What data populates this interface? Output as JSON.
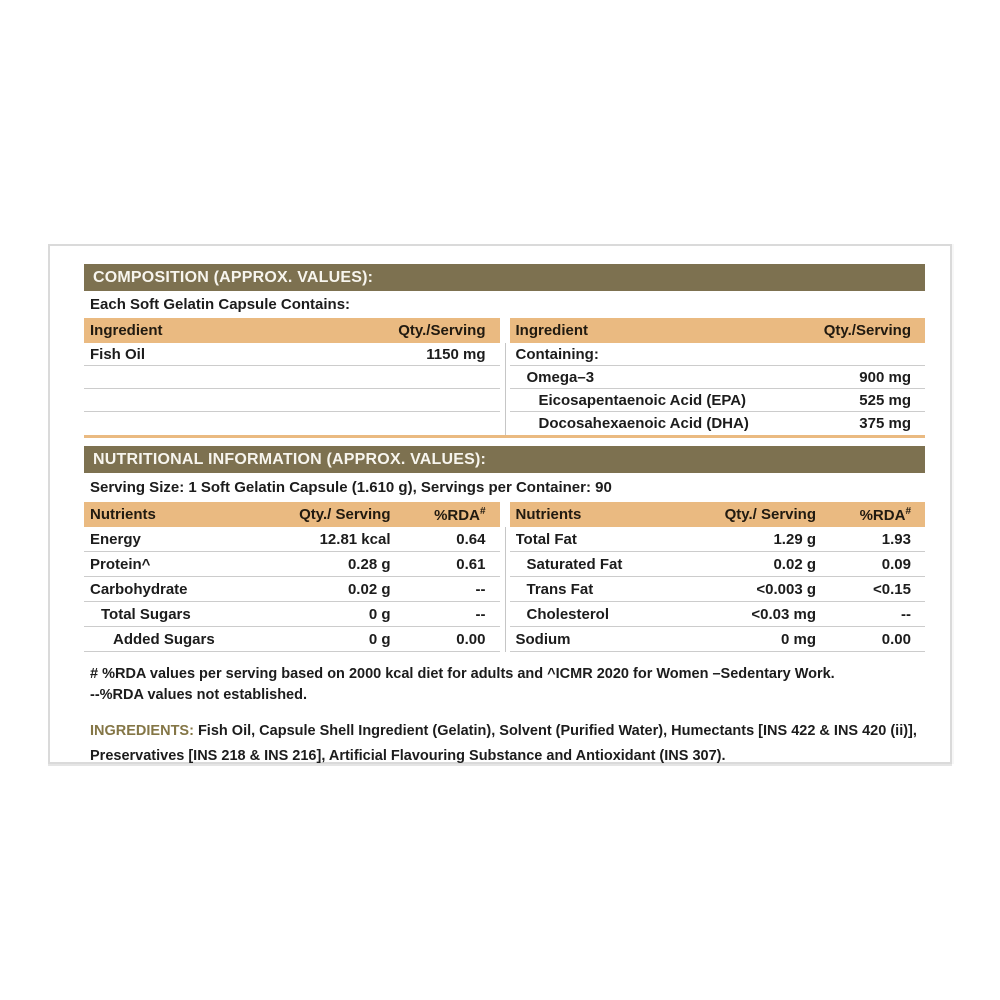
{
  "composition": {
    "title": "COMPOSITION (APPROX. VALUES):",
    "subtitle": "Each Soft Gelatin Capsule Contains:",
    "col_headers": {
      "ingredient": "Ingredient",
      "qty": "Qty./Serving"
    },
    "left_rows": [
      {
        "label": "Fish Oil",
        "qty": "1150 mg",
        "indent": 0
      },
      {
        "label": "",
        "qty": "",
        "indent": 0
      },
      {
        "label": "",
        "qty": "",
        "indent": 0
      },
      {
        "label": "",
        "qty": "",
        "indent": 0
      }
    ],
    "right_rows": [
      {
        "label": "Containing:",
        "qty": "",
        "indent": 0
      },
      {
        "label": "Omega–3",
        "qty": "900 mg",
        "indent": 1
      },
      {
        "label": "Eicosapentaenoic Acid (EPA)",
        "qty": "525 mg",
        "indent": 2
      },
      {
        "label": "Docosahexaenoic Acid (DHA)",
        "qty": "375 mg",
        "indent": 2
      }
    ]
  },
  "nutrition": {
    "title": "NUTRITIONAL INFORMATION (APPROX. VALUES):",
    "serving_line": "Serving Size: 1 Soft Gelatin Capsule (1.610 g), Servings per Container: 90",
    "col_headers": {
      "nutrients": "Nutrients",
      "qty": "Qty./ Serving",
      "rda": "%RDA",
      "rda_sup": "#"
    },
    "left_rows": [
      {
        "label": "Energy",
        "qty": "12.81 kcal",
        "rda": "0.64",
        "indent": 0
      },
      {
        "label": "Protein^",
        "qty": "0.28 g",
        "rda": "0.61",
        "indent": 0
      },
      {
        "label": "Carbohydrate",
        "qty": "0.02 g",
        "rda": "--",
        "indent": 0
      },
      {
        "label": "Total Sugars",
        "qty": "0 g",
        "rda": "--",
        "indent": 1
      },
      {
        "label": "Added Sugars",
        "qty": "0 g",
        "rda": "0.00",
        "indent": 2
      }
    ],
    "right_rows": [
      {
        "label": "Total Fat",
        "qty": "1.29 g",
        "rda": "1.93",
        "indent": 0
      },
      {
        "label": "Saturated Fat",
        "qty": "0.02 g",
        "rda": "0.09",
        "indent": 1
      },
      {
        "label": "Trans Fat",
        "qty": "<0.003 g",
        "rda": "<0.15",
        "indent": 1
      },
      {
        "label": "Cholesterol",
        "qty": "<0.03 mg",
        "rda": "--",
        "indent": 1
      },
      {
        "label": "Sodium",
        "qty": "0 mg",
        "rda": "0.00",
        "indent": 0
      }
    ],
    "footnote1": "# %RDA values per serving based on 2000 kcal diet for adults and ^ICMR 2020 for Women –Sedentary Work.",
    "footnote2": "--%RDA values not established."
  },
  "ingredients": {
    "label": "INGREDIENTS:",
    "text": " Fish Oil, Capsule Shell Ingredient (Gelatin), Solvent (Purified Water), Humectants [INS 422 & INS 420 (ii)], Preservatives [INS 218 & INS 216], Artificial Flavouring Substance and Antioxidant (INS 307)."
  },
  "colors": {
    "section_bar": "#7d7150",
    "table_header": "#eaba81",
    "ingredients_label": "#847646"
  }
}
